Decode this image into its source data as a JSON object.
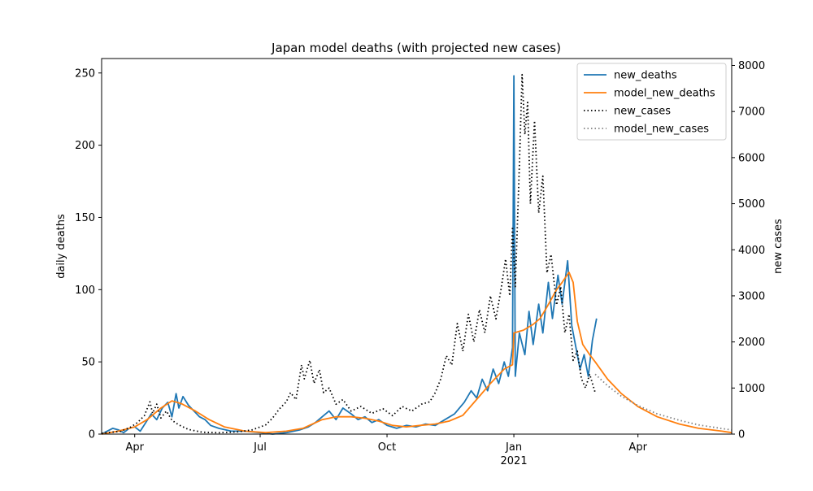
{
  "chart_data": {
    "type": "line",
    "title": "Japan model deaths (with projected new cases)",
    "ylabel": "daily deaths",
    "y2label": "new cases",
    "xlabel": "",
    "x_date_range": [
      "2020-03-08",
      "2021-06-08"
    ],
    "ylim": [
      0,
      260
    ],
    "y2lim": [
      0,
      8150
    ],
    "yticks": [
      0,
      50,
      100,
      150,
      200,
      250
    ],
    "y2ticks": [
      0,
      1000,
      2000,
      3000,
      4000,
      5000,
      6000,
      7000,
      8000
    ],
    "xticks": [
      {
        "date": "2020-04-01",
        "label": "Apr",
        "sublabel": ""
      },
      {
        "date": "2020-07-01",
        "label": "Jul",
        "sublabel": ""
      },
      {
        "date": "2020-10-01",
        "label": "Oct",
        "sublabel": ""
      },
      {
        "date": "2021-01-01",
        "label": "Jan",
        "sublabel": "2021"
      },
      {
        "date": "2021-04-01",
        "label": "Apr",
        "sublabel": ""
      }
    ],
    "legend_position": "top-right",
    "grid": false,
    "series": [
      {
        "name": "new_deaths",
        "axis": "left",
        "color": "#1f77b4",
        "style": "solid",
        "points": [
          [
            "2020-03-08",
            0
          ],
          [
            "2020-03-12",
            2
          ],
          [
            "2020-03-16",
            4
          ],
          [
            "2020-03-20",
            3
          ],
          [
            "2020-03-24",
            1
          ],
          [
            "2020-03-28",
            4
          ],
          [
            "2020-04-01",
            5
          ],
          [
            "2020-04-05",
            2
          ],
          [
            "2020-04-09",
            8
          ],
          [
            "2020-04-13",
            14
          ],
          [
            "2020-04-17",
            10
          ],
          [
            "2020-04-21",
            18
          ],
          [
            "2020-04-25",
            22
          ],
          [
            "2020-04-28",
            12
          ],
          [
            "2020-05-01",
            28
          ],
          [
            "2020-05-03",
            18
          ],
          [
            "2020-05-06",
            26
          ],
          [
            "2020-05-10",
            20
          ],
          [
            "2020-05-14",
            16
          ],
          [
            "2020-05-18",
            12
          ],
          [
            "2020-05-22",
            10
          ],
          [
            "2020-05-26",
            6
          ],
          [
            "2020-06-01",
            4
          ],
          [
            "2020-06-10",
            2
          ],
          [
            "2020-06-20",
            2
          ],
          [
            "2020-07-01",
            1
          ],
          [
            "2020-07-10",
            0
          ],
          [
            "2020-07-20",
            1
          ],
          [
            "2020-07-30",
            3
          ],
          [
            "2020-08-05",
            5
          ],
          [
            "2020-08-10",
            8
          ],
          [
            "2020-08-15",
            12
          ],
          [
            "2020-08-20",
            16
          ],
          [
            "2020-08-25",
            10
          ],
          [
            "2020-08-30",
            18
          ],
          [
            "2020-09-05",
            14
          ],
          [
            "2020-09-10",
            10
          ],
          [
            "2020-09-15",
            12
          ],
          [
            "2020-09-20",
            8
          ],
          [
            "2020-09-25",
            10
          ],
          [
            "2020-10-01",
            6
          ],
          [
            "2020-10-08",
            4
          ],
          [
            "2020-10-15",
            6
          ],
          [
            "2020-10-22",
            5
          ],
          [
            "2020-10-29",
            7
          ],
          [
            "2020-11-05",
            6
          ],
          [
            "2020-11-12",
            10
          ],
          [
            "2020-11-19",
            14
          ],
          [
            "2020-11-26",
            22
          ],
          [
            "2020-12-01",
            30
          ],
          [
            "2020-12-05",
            25
          ],
          [
            "2020-12-09",
            38
          ],
          [
            "2020-12-13",
            30
          ],
          [
            "2020-12-17",
            45
          ],
          [
            "2020-12-21",
            35
          ],
          [
            "2020-12-25",
            50
          ],
          [
            "2020-12-28",
            40
          ],
          [
            "2020-12-31",
            60
          ],
          [
            "2021-01-01",
            248
          ],
          [
            "2021-01-02",
            40
          ],
          [
            "2021-01-05",
            70
          ],
          [
            "2021-01-09",
            55
          ],
          [
            "2021-01-12",
            85
          ],
          [
            "2021-01-15",
            62
          ],
          [
            "2021-01-19",
            90
          ],
          [
            "2021-01-22",
            70
          ],
          [
            "2021-01-26",
            105
          ],
          [
            "2021-01-29",
            80
          ],
          [
            "2021-02-02",
            110
          ],
          [
            "2021-02-05",
            90
          ],
          [
            "2021-02-09",
            120
          ],
          [
            "2021-02-12",
            75
          ],
          [
            "2021-02-15",
            60
          ],
          [
            "2021-02-18",
            45
          ],
          [
            "2021-02-21",
            55
          ],
          [
            "2021-02-24",
            40
          ],
          [
            "2021-02-27",
            65
          ],
          [
            "2021-03-02",
            80
          ]
        ]
      },
      {
        "name": "model_new_deaths",
        "axis": "left",
        "color": "#ff7f0e",
        "style": "solid",
        "points": [
          [
            "2020-03-08",
            0
          ],
          [
            "2020-03-20",
            2
          ],
          [
            "2020-04-01",
            5
          ],
          [
            "2020-04-10",
            10
          ],
          [
            "2020-04-20",
            18
          ],
          [
            "2020-04-28",
            23
          ],
          [
            "2020-05-05",
            21
          ],
          [
            "2020-05-15",
            16
          ],
          [
            "2020-05-25",
            10
          ],
          [
            "2020-06-05",
            5
          ],
          [
            "2020-06-20",
            2
          ],
          [
            "2020-07-05",
            1
          ],
          [
            "2020-07-20",
            2
          ],
          [
            "2020-08-01",
            4
          ],
          [
            "2020-08-15",
            10
          ],
          [
            "2020-08-25",
            12
          ],
          [
            "2020-09-05",
            12
          ],
          [
            "2020-09-15",
            11
          ],
          [
            "2020-09-25",
            9
          ],
          [
            "2020-10-05",
            6
          ],
          [
            "2020-10-15",
            5
          ],
          [
            "2020-10-25",
            6
          ],
          [
            "2020-11-05",
            7
          ],
          [
            "2020-11-15",
            9
          ],
          [
            "2020-11-25",
            13
          ],
          [
            "2020-12-05",
            24
          ],
          [
            "2020-12-15",
            35
          ],
          [
            "2020-12-25",
            45
          ],
          [
            "2020-12-31",
            48
          ],
          [
            "2021-01-01",
            70
          ],
          [
            "2021-01-08",
            72
          ],
          [
            "2021-01-15",
            76
          ],
          [
            "2021-01-20",
            80
          ],
          [
            "2021-01-25",
            88
          ],
          [
            "2021-02-01",
            100
          ],
          [
            "2021-02-05",
            105
          ],
          [
            "2021-02-10",
            112
          ],
          [
            "2021-02-13",
            105
          ],
          [
            "2021-02-16",
            78
          ],
          [
            "2021-02-20",
            62
          ],
          [
            "2021-02-25",
            55
          ],
          [
            "2021-03-01",
            50
          ],
          [
            "2021-03-10",
            38
          ],
          [
            "2021-03-20",
            28
          ],
          [
            "2021-04-01",
            19
          ],
          [
            "2021-04-15",
            12
          ],
          [
            "2021-05-01",
            7
          ],
          [
            "2021-05-15",
            4
          ],
          [
            "2021-06-01",
            2
          ],
          [
            "2021-06-08",
            1
          ]
        ]
      },
      {
        "name": "new_cases",
        "axis": "right",
        "color": "#000000",
        "style": "dotted",
        "points": [
          [
            "2020-03-08",
            20
          ],
          [
            "2020-03-15",
            40
          ],
          [
            "2020-03-22",
            60
          ],
          [
            "2020-03-29",
            150
          ],
          [
            "2020-04-03",
            250
          ],
          [
            "2020-04-08",
            400
          ],
          [
            "2020-04-12",
            700
          ],
          [
            "2020-04-14",
            450
          ],
          [
            "2020-04-17",
            650
          ],
          [
            "2020-04-20",
            350
          ],
          [
            "2020-04-24",
            500
          ],
          [
            "2020-04-28",
            300
          ],
          [
            "2020-05-03",
            200
          ],
          [
            "2020-05-10",
            100
          ],
          [
            "2020-05-20",
            40
          ],
          [
            "2020-06-01",
            30
          ],
          [
            "2020-06-15",
            50
          ],
          [
            "2020-06-25",
            90
          ],
          [
            "2020-07-05",
            200
          ],
          [
            "2020-07-10",
            350
          ],
          [
            "2020-07-15",
            550
          ],
          [
            "2020-07-20",
            700
          ],
          [
            "2020-07-23",
            900
          ],
          [
            "2020-07-27",
            750
          ],
          [
            "2020-07-31",
            1500
          ],
          [
            "2020-08-02",
            1200
          ],
          [
            "2020-08-06",
            1600
          ],
          [
            "2020-08-09",
            1100
          ],
          [
            "2020-08-13",
            1400
          ],
          [
            "2020-08-16",
            900
          ],
          [
            "2020-08-20",
            1000
          ],
          [
            "2020-08-25",
            650
          ],
          [
            "2020-08-30",
            750
          ],
          [
            "2020-09-05",
            500
          ],
          [
            "2020-09-12",
            600
          ],
          [
            "2020-09-20",
            450
          ],
          [
            "2020-09-28",
            550
          ],
          [
            "2020-10-05",
            400
          ],
          [
            "2020-10-12",
            600
          ],
          [
            "2020-10-19",
            500
          ],
          [
            "2020-10-26",
            650
          ],
          [
            "2020-11-01",
            700
          ],
          [
            "2020-11-05",
            900
          ],
          [
            "2020-11-09",
            1200
          ],
          [
            "2020-11-13",
            1700
          ],
          [
            "2020-11-17",
            1500
          ],
          [
            "2020-11-21",
            2400
          ],
          [
            "2020-11-25",
            1800
          ],
          [
            "2020-11-29",
            2600
          ],
          [
            "2020-12-03",
            2000
          ],
          [
            "2020-12-07",
            2700
          ],
          [
            "2020-12-11",
            2200
          ],
          [
            "2020-12-15",
            3000
          ],
          [
            "2020-12-19",
            2500
          ],
          [
            "2020-12-23",
            3200
          ],
          [
            "2020-12-26",
            3800
          ],
          [
            "2020-12-29",
            3000
          ],
          [
            "2020-12-31",
            4500
          ],
          [
            "2021-01-02",
            3200
          ],
          [
            "2021-01-05",
            5800
          ],
          [
            "2021-01-07",
            7800
          ],
          [
            "2021-01-09",
            6500
          ],
          [
            "2021-01-11",
            7200
          ],
          [
            "2021-01-13",
            5000
          ],
          [
            "2021-01-16",
            6800
          ],
          [
            "2021-01-19",
            4800
          ],
          [
            "2021-01-22",
            5600
          ],
          [
            "2021-01-25",
            3500
          ],
          [
            "2021-01-28",
            3900
          ],
          [
            "2021-02-01",
            2800
          ],
          [
            "2021-02-04",
            3200
          ],
          [
            "2021-02-07",
            2200
          ],
          [
            "2021-02-10",
            2600
          ],
          [
            "2021-02-13",
            1600
          ],
          [
            "2021-02-16",
            1800
          ],
          [
            "2021-02-19",
            1200
          ],
          [
            "2021-02-22",
            1000
          ],
          [
            "2021-02-25",
            1300
          ],
          [
            "2021-03-01",
            900
          ]
        ]
      },
      {
        "name": "model_new_cases",
        "axis": "right",
        "color": "#808080",
        "style": "dotted",
        "points": [
          [
            "2021-03-01",
            1300
          ],
          [
            "2021-03-10",
            1050
          ],
          [
            "2021-03-20",
            820
          ],
          [
            "2021-04-01",
            620
          ],
          [
            "2021-04-15",
            440
          ],
          [
            "2021-05-01",
            300
          ],
          [
            "2021-05-15",
            200
          ],
          [
            "2021-06-01",
            120
          ],
          [
            "2021-06-08",
            90
          ]
        ]
      }
    ]
  }
}
